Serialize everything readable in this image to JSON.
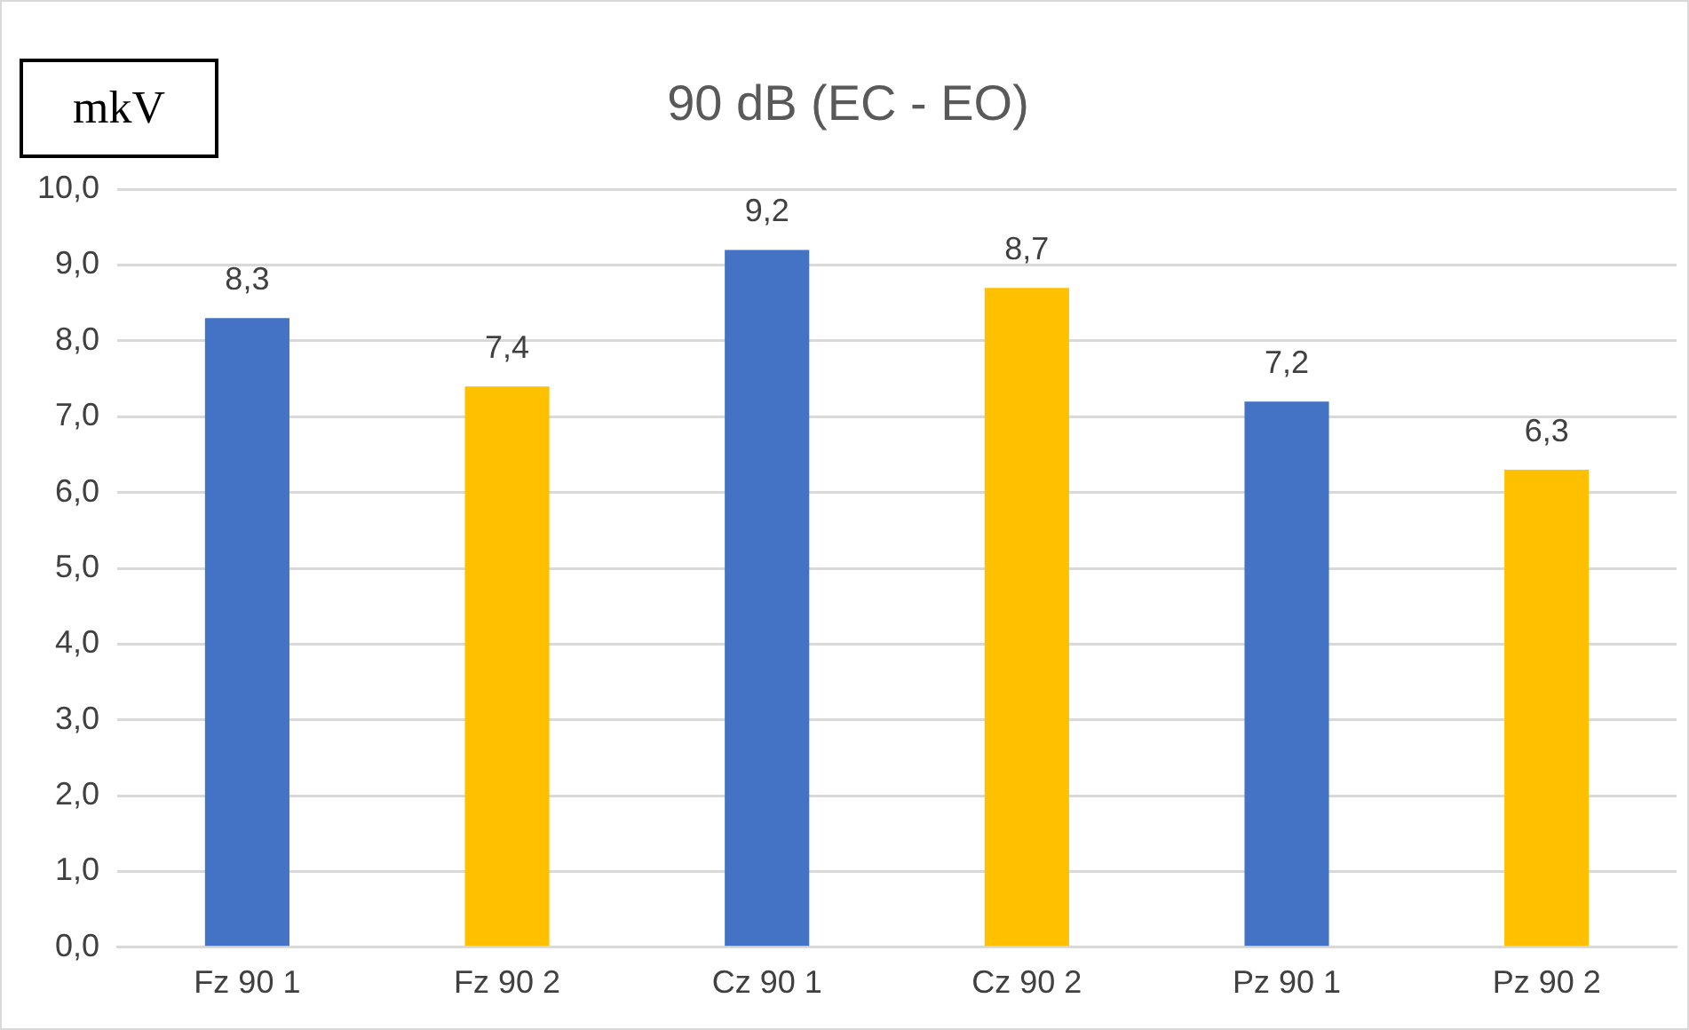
{
  "chart_data": {
    "type": "bar",
    "title": "90 dB (EC - EO)",
    "ylabel": "mkV",
    "categories": [
      "Fz 90 1",
      "Fz 90 2",
      "Cz 90 1",
      "Cz 90 2",
      "Pz 90 1",
      "Pz 90 2"
    ],
    "values": [
      8.3,
      7.4,
      9.2,
      8.7,
      7.2,
      6.3
    ],
    "colors": [
      "#4472c4",
      "#ffc000",
      "#4472c4",
      "#ffc000",
      "#4472c4",
      "#ffc000"
    ],
    "value_labels": [
      "8,3",
      "7,4",
      "9,2",
      "8,7",
      "7,2",
      "6,3"
    ],
    "ylim": [
      0,
      10
    ],
    "yticks": [
      {
        "value": 0,
        "label": "0,0"
      },
      {
        "value": 1,
        "label": "1,0"
      },
      {
        "value": 2,
        "label": "2,0"
      },
      {
        "value": 3,
        "label": "3,0"
      },
      {
        "value": 4,
        "label": "4,0"
      },
      {
        "value": 5,
        "label": "5,0"
      },
      {
        "value": 6,
        "label": "6,0"
      },
      {
        "value": 7,
        "label": "7,0"
      },
      {
        "value": 8,
        "label": "8,0"
      },
      {
        "value": 9,
        "label": "9,0"
      },
      {
        "value": 10,
        "label": "10,0"
      }
    ],
    "grid": "y",
    "legend": false
  }
}
